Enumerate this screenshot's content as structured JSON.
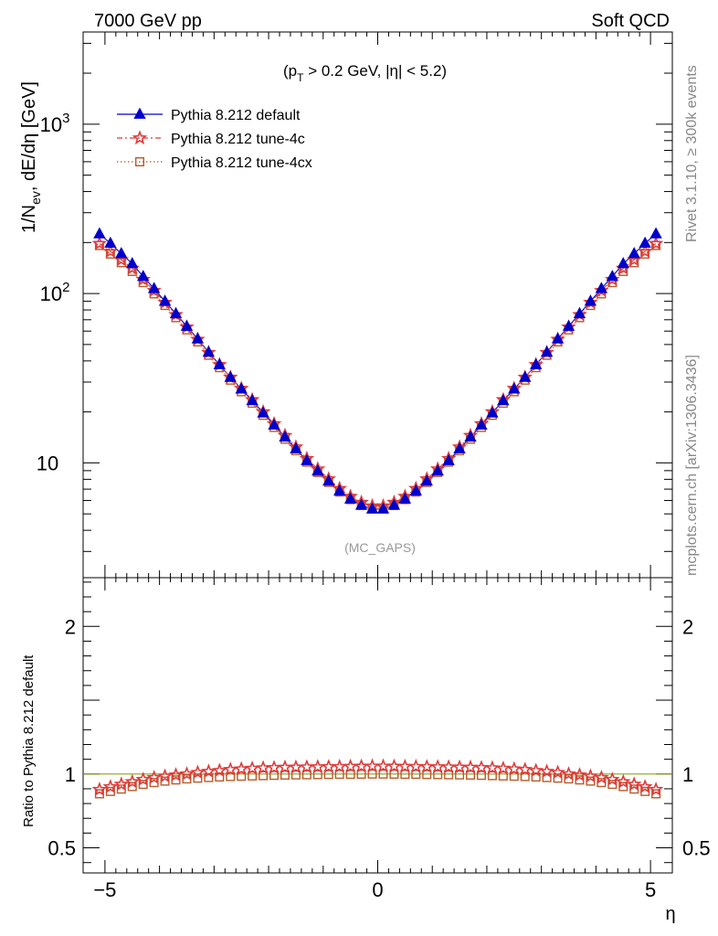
{
  "header": {
    "left": "7000 GeV pp",
    "right": "Soft QCD"
  },
  "side_labels": {
    "rivet": "Rivet 3.1.10, ≥ 300k events",
    "mcplots": "mcplots.cern.ch [arXiv:1306.3436]"
  },
  "chart_data": [
    {
      "type": "scatter",
      "panel": "main",
      "cut_label": "(p_T > 0.2 GeV, |η| < 5.2)",
      "cut_parts": {
        "open": "(p",
        "sub": "T",
        "rest": " > 0.2 GeV, |η| < 5.2)"
      },
      "analysis_label": "(MC_GAPS)",
      "ylabel": "1/N_ev, dE/dη [GeV]",
      "ylabel_parts": {
        "pre": "1/N",
        "sub": "ev",
        "post": ", dE/dη [GeV]"
      },
      "yscale": "log",
      "xlim": [
        -5.4,
        5.4
      ],
      "ylim": [
        2.1,
        3500
      ],
      "yticks": [
        {
          "value": 10,
          "label": "10"
        },
        {
          "value": 100,
          "label": "10",
          "exp": "2"
        },
        {
          "value": 1000,
          "label": "10",
          "exp": "3"
        }
      ],
      "legend_position": "top-left",
      "x": [
        -5.1,
        -4.9,
        -4.7,
        -4.5,
        -4.3,
        -4.1,
        -3.9,
        -3.7,
        -3.5,
        -3.3,
        -3.1,
        -2.9,
        -2.7,
        -2.5,
        -2.3,
        -2.1,
        -1.9,
        -1.7,
        -1.5,
        -1.3,
        -1.1,
        -0.9,
        -0.7,
        -0.5,
        -0.3,
        -0.1,
        0.1,
        0.3,
        0.5,
        0.7,
        0.9,
        1.1,
        1.3,
        1.5,
        1.7,
        1.9,
        2.1,
        2.3,
        2.5,
        2.7,
        2.9,
        3.1,
        3.3,
        3.5,
        3.7,
        3.9,
        4.1,
        4.3,
        4.5,
        4.7,
        4.9,
        5.1
      ],
      "series": [
        {
          "name": "Pythia 8.212 default",
          "color": "#0000cc",
          "marker": "triangle",
          "line": "solid",
          "values": [
            225,
            198,
            172,
            150,
            126,
            107,
            90,
            76,
            64,
            54,
            45,
            38,
            32,
            27.3,
            23.3,
            19.7,
            16.7,
            14.2,
            12.1,
            10.3,
            8.95,
            7.8,
            6.82,
            6.12,
            5.62,
            5.34,
            5.34,
            5.62,
            6.12,
            6.82,
            7.8,
            8.95,
            10.3,
            12.1,
            14.2,
            16.7,
            19.7,
            23.3,
            27.3,
            32,
            38,
            45,
            54,
            64,
            76,
            90,
            107,
            126,
            150,
            172,
            198,
            225
          ]
        },
        {
          "name": "Pythia 8.212 tune-4c",
          "color": "#e03a3a",
          "marker": "star",
          "line": "dashdot",
          "values": [
            197,
            177,
            158,
            141,
            121,
            104,
            88.5,
            75,
            63.3,
            53.6,
            44.8,
            38,
            32,
            27.5,
            23.6,
            20,
            17,
            14.5,
            12.4,
            10.6,
            9.2,
            8.04,
            7.05,
            6.34,
            5.84,
            5.56,
            5.56,
            5.84,
            6.34,
            7.05,
            8.04,
            9.2,
            10.6,
            12.4,
            14.5,
            17,
            20,
            23.6,
            27.5,
            32,
            38,
            44.8,
            53.6,
            63.3,
            75,
            88.5,
            104,
            121,
            141,
            158,
            177,
            197
          ]
        },
        {
          "name": "Pythia 8.212 tune-4cx",
          "color": "#b85a2a",
          "marker": "square",
          "line": "dotted",
          "values": [
            192,
            171,
            152,
            135,
            116,
            99.5,
            85,
            72,
            61,
            51.8,
            43.2,
            36.5,
            30.8,
            26.3,
            22.5,
            19.1,
            16.2,
            13.8,
            11.8,
            10.1,
            8.78,
            7.67,
            6.73,
            6.07,
            5.6,
            5.34,
            5.34,
            5.6,
            6.07,
            6.73,
            7.67,
            8.78,
            10.1,
            11.8,
            13.8,
            16.2,
            19.1,
            22.5,
            26.3,
            30.8,
            36.5,
            43.2,
            51.8,
            61,
            72,
            85,
            99.5,
            116,
            135,
            152,
            171,
            192
          ]
        }
      ]
    },
    {
      "type": "scatter",
      "panel": "ratio",
      "ylabel": "Ratio to Pythia 8.212 default",
      "xlabel": "η",
      "yscale": "linear",
      "xlim": [
        -5.4,
        5.4
      ],
      "ylim": [
        0.33,
        2.33
      ],
      "yticks": [
        {
          "value": 0.5,
          "label": "0.5"
        },
        {
          "value": 1,
          "label": "1"
        },
        {
          "value": 2,
          "label": "2"
        }
      ],
      "xticks": [
        {
          "value": -5,
          "label": "−5"
        },
        {
          "value": 0,
          "label": "0"
        },
        {
          "value": 5,
          "label": "5"
        }
      ],
      "reference_line": 1,
      "series": [
        {
          "name": "Pythia 8.212 tune-4c",
          "color": "#e03a3a",
          "marker": "star",
          "values": [
            0.895,
            0.913,
            0.93,
            0.947,
            0.963,
            0.975,
            0.985,
            0.993,
            1.0,
            1.01,
            1.017,
            1.023,
            1.03,
            1.034,
            1.038,
            1.041,
            1.043,
            1.045,
            1.046,
            1.047,
            1.048,
            1.049,
            1.05,
            1.051,
            1.052,
            1.053,
            1.053,
            1.052,
            1.051,
            1.05,
            1.049,
            1.048,
            1.047,
            1.046,
            1.045,
            1.043,
            1.041,
            1.038,
            1.034,
            1.03,
            1.023,
            1.017,
            1.01,
            1.0,
            0.993,
            0.985,
            0.975,
            0.963,
            0.947,
            0.93,
            0.913,
            0.895
          ]
        },
        {
          "name": "Pythia 8.212 tune-4cx",
          "color": "#b85a2a",
          "marker": "square",
          "values": [
            0.866,
            0.882,
            0.898,
            0.915,
            0.93,
            0.942,
            0.952,
            0.96,
            0.967,
            0.972,
            0.976,
            0.98,
            0.983,
            0.985,
            0.987,
            0.989,
            0.991,
            0.993,
            0.994,
            0.995,
            0.996,
            0.997,
            0.998,
            0.998,
            0.999,
            1.0,
            1.0,
            0.999,
            0.998,
            0.998,
            0.997,
            0.996,
            0.995,
            0.994,
            0.993,
            0.991,
            0.989,
            0.987,
            0.985,
            0.983,
            0.98,
            0.976,
            0.972,
            0.967,
            0.96,
            0.952,
            0.942,
            0.93,
            0.915,
            0.898,
            0.882,
            0.866
          ]
        }
      ]
    }
  ]
}
